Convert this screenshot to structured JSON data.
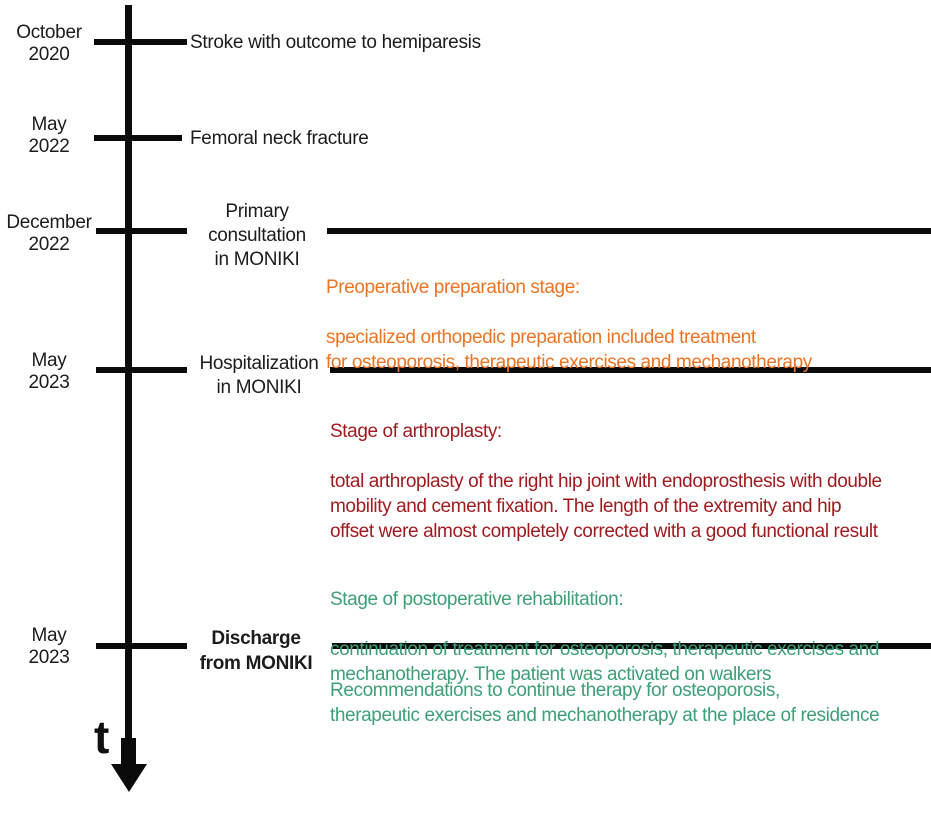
{
  "diagram": {
    "type": "vertical-timeline",
    "time_axis_label": "t",
    "colors": {
      "axis": "#0b0b0b",
      "text": "#1c1c1c",
      "preoperative_orange": "#ED7423",
      "arthroplasty_dark_red": "#A01B1F",
      "rehabilitation_green": "#3EA076"
    },
    "milestones": [
      {
        "date": "October\n2020",
        "event": "Stroke with outcome to hemiparesis"
      },
      {
        "date": "May\n2022",
        "event": "Femoral neck fracture"
      },
      {
        "date": "December\n2022",
        "event": "Primary\nconsultation\nin MONIKI"
      },
      {
        "date": "May\n2023",
        "event": "Hospitalization\nin MONIKI"
      },
      {
        "date": "May\n2023",
        "event": "Discharge\nfrom MONIKI"
      }
    ],
    "stages": [
      {
        "title": "Preoperative preparation stage:",
        "description": "specialized orthopedic preparation included treatment\nfor osteoporosis, therapeutic exercises and mechanotherapy",
        "color": "#ED7423"
      },
      {
        "title": "Stage of arthroplasty:",
        "description": "total arthroplasty of the right hip joint with endoprosthesis with double\nmobility and cement fixation. The length of the extremity and hip\noffset were almost completely corrected with a good functional result",
        "color": "#A01B1F"
      },
      {
        "title": "Stage of postoperative rehabilitation:",
        "description": "continuation of treatment for osteoporosis, therapeutic exercises and\nmechanotherapy. The patient was activated on walkers",
        "color": "#3EA076"
      },
      {
        "title": "",
        "description": "Recommendations to continue therapy for osteoporosis,\ntherapeutic exercises and mechanotherapy at the place of residence",
        "color": "#3EA076"
      }
    ]
  }
}
